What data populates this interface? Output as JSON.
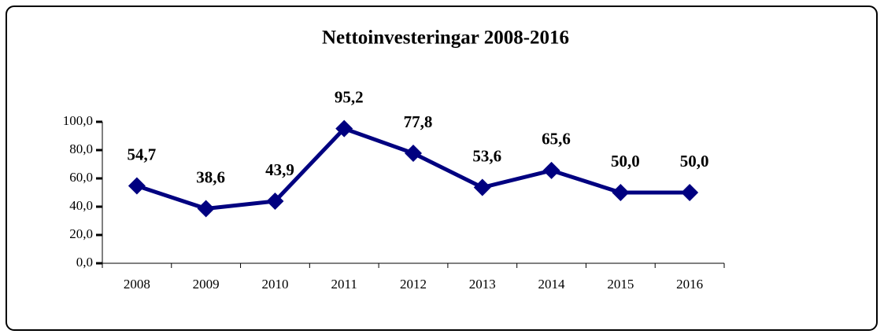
{
  "chart_data": {
    "type": "line",
    "title": "Nettoinvesteringar 2008-2016",
    "categories": [
      "2008",
      "2009",
      "2010",
      "2011",
      "2012",
      "2013",
      "2014",
      "2015",
      "2016"
    ],
    "series": [
      {
        "color": "#000080",
        "values": [
          54.7,
          38.6,
          43.9,
          95.2,
          77.8,
          53.6,
          65.6,
          50.0,
          50.0
        ],
        "value_labels": [
          "54,7",
          "38,6",
          "43,9",
          "95,2",
          "77,8",
          "53,6",
          "65,6",
          "50,0",
          "50,0"
        ]
      }
    ],
    "ylim": [
      0,
      100
    ],
    "yticks": [
      {
        "value": 0,
        "label": "0,0"
      },
      {
        "value": 20,
        "label": "20,0"
      },
      {
        "value": 40,
        "label": "40,0"
      },
      {
        "value": 60,
        "label": "60,0"
      },
      {
        "value": 80,
        "label": "80,0"
      },
      {
        "value": 100,
        "label": "100,0"
      }
    ],
    "grid": false
  }
}
